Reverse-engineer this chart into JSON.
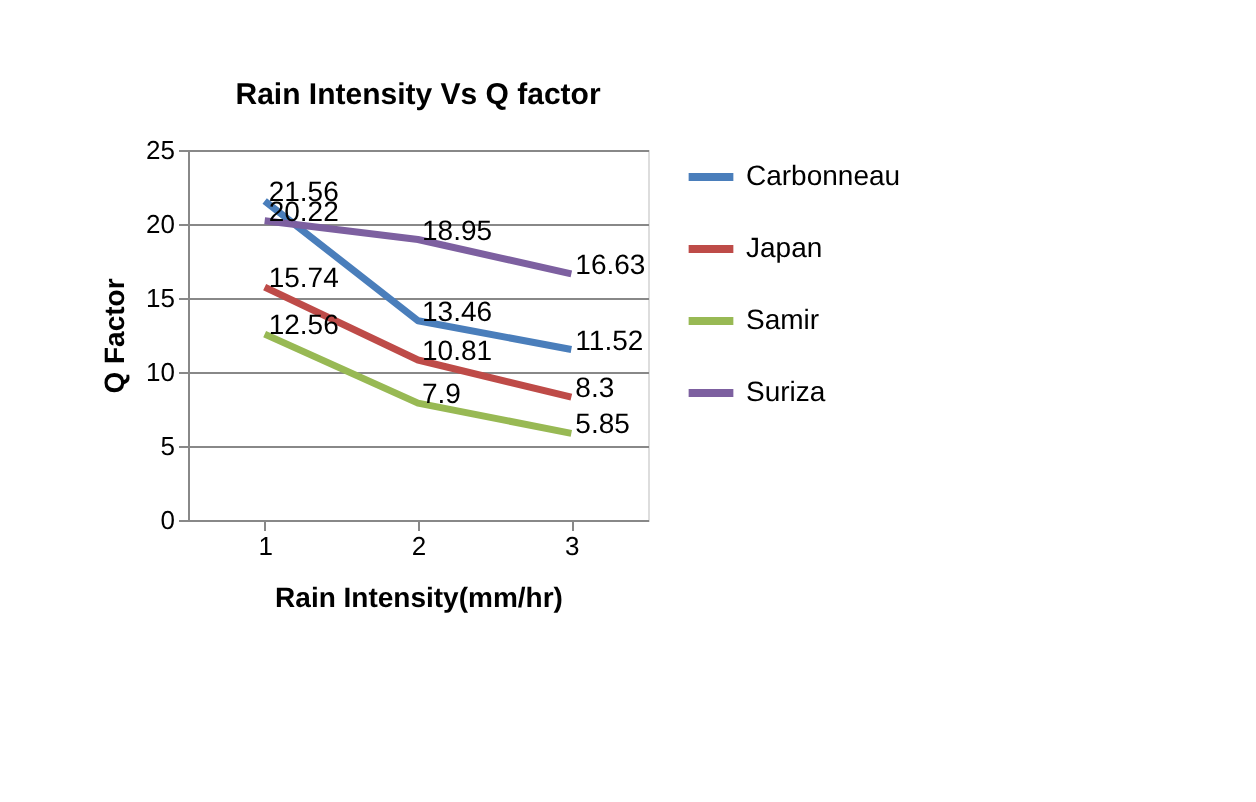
{
  "chart_data": {
    "type": "line",
    "title": "Rain Intensity Vs Q factor",
    "xlabel": "Rain Intensity(mm/hr)",
    "ylabel": "Q Factor",
    "categories": [
      "1",
      "2",
      "3"
    ],
    "series": [
      {
        "name": "Carbonneau",
        "color": "#4a7ebb",
        "values": [
          21.56,
          13.46,
          11.52
        ]
      },
      {
        "name": "Japan",
        "color": "#be4b48",
        "values": [
          15.74,
          10.81,
          8.3
        ]
      },
      {
        "name": "Samir",
        "color": "#98b954",
        "values": [
          12.56,
          7.9,
          5.85
        ]
      },
      {
        "name": "Suriza",
        "color": "#7d60a0",
        "values": [
          20.22,
          18.95,
          16.63
        ]
      }
    ],
    "ylim": [
      0,
      25
    ],
    "yticks": [
      0,
      5,
      10,
      15,
      20,
      25
    ],
    "grid": "y",
    "legend": "right",
    "data_labels": true,
    "marker": "none",
    "line_style": "solid"
  }
}
